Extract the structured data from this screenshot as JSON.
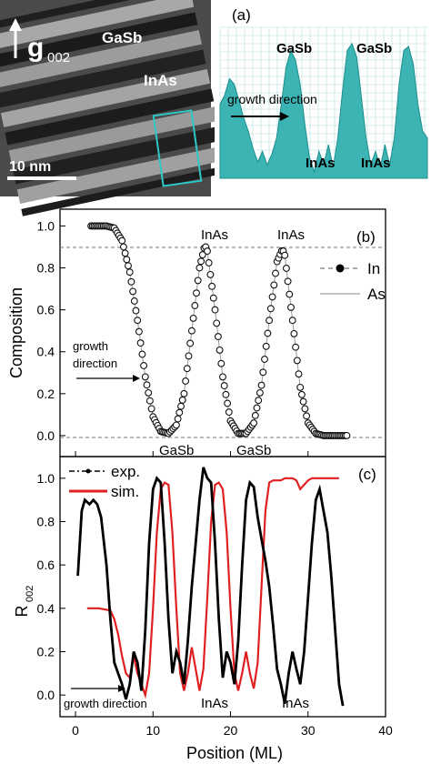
{
  "panel_a": {
    "tem": {
      "g_label": "g",
      "g_subscript": "002",
      "layer_top": "GaSb",
      "layer_mid": "InAs",
      "scale_bar": "10 nm"
    },
    "profile": {
      "panel_label": "(a)",
      "peak_labels": [
        "GaSb",
        "GaSb"
      ],
      "valley_labels": [
        "InAs",
        "InAs"
      ],
      "growth_label": "growth direction",
      "fill_color": "#3cb4b4",
      "grid_color": "#b5dede"
    }
  },
  "panel_b": {
    "panel_label": "(b)",
    "growth_label_1": "growth",
    "growth_label_2": "direction",
    "peak_labels": [
      "InAs",
      "InAs"
    ],
    "valley_labels": [
      "GaSb",
      "GaSb"
    ]
  },
  "panel_c": {
    "panel_label": "(c)",
    "growth_label": "growth direction",
    "valley_labels": [
      "InAs",
      "InAs"
    ]
  },
  "chart_data": [
    {
      "type": "scatter",
      "panel": "(b)",
      "xlabel": "",
      "ylabel": "Composition",
      "ylim": [
        -0.1,
        1.08
      ],
      "yticks": [
        "0.0",
        "0.2",
        "0.4",
        "0.6",
        "0.8",
        "1.0"
      ],
      "reference_lines": [
        1.0,
        0.0
      ],
      "legend": [
        "In",
        "As"
      ],
      "legend_position": "top-right",
      "series": [
        {
          "name": "In",
          "x": [
            2.0,
            3.0,
            4.0,
            5.0,
            6.0,
            7.0,
            8.0,
            9.0,
            10.0,
            11.0,
            12.0,
            13.0,
            14.0,
            15.0,
            16.0,
            16.7,
            17.0,
            18.0,
            19.0,
            20.0,
            21.0,
            22.0,
            23.0,
            24.0,
            25.0,
            26.0,
            26.7,
            27.0,
            28.0,
            29.0,
            30.0,
            31.0,
            32.0,
            33.0,
            34.0,
            35.0
          ],
          "y": [
            1.0,
            1.0,
            1.0,
            0.99,
            0.93,
            0.78,
            0.55,
            0.28,
            0.09,
            0.02,
            0.01,
            0.05,
            0.2,
            0.5,
            0.8,
            0.91,
            0.88,
            0.6,
            0.28,
            0.07,
            0.01,
            0.01,
            0.06,
            0.24,
            0.55,
            0.83,
            0.89,
            0.86,
            0.55,
            0.23,
            0.06,
            0.01,
            0.0,
            0.0,
            0.0,
            0.0
          ]
        },
        {
          "name": "As",
          "x": [
            2.0,
            3.0,
            4.0,
            5.0,
            6.0,
            7.0,
            8.0,
            9.0,
            10.0,
            11.0,
            12.0,
            13.0,
            14.0,
            15.0,
            16.0,
            16.7,
            17.0,
            18.0,
            19.0,
            20.0,
            21.0,
            22.0,
            23.0,
            24.0,
            25.0,
            26.0,
            26.7,
            27.0,
            28.0,
            29.0,
            30.0,
            31.0,
            32.0,
            33.0,
            34.0,
            35.0
          ],
          "y": [
            1.0,
            1.0,
            1.0,
            0.99,
            0.93,
            0.78,
            0.55,
            0.28,
            0.09,
            0.02,
            0.01,
            0.05,
            0.2,
            0.5,
            0.8,
            0.91,
            0.88,
            0.6,
            0.28,
            0.07,
            0.01,
            0.01,
            0.06,
            0.24,
            0.55,
            0.83,
            0.89,
            0.86,
            0.55,
            0.23,
            0.06,
            0.01,
            0.0,
            0.0,
            0.0,
            0.0
          ]
        }
      ]
    },
    {
      "type": "line",
      "panel": "(c)",
      "xlabel": "Position (ML)",
      "ylabel": "R",
      "ylabel_subscript": "002",
      "xlim": [
        -2,
        40
      ],
      "ylim": [
        -0.1,
        1.1
      ],
      "xticks": [
        "0",
        "10",
        "20",
        "30",
        "40"
      ],
      "yticks": [
        "0.0",
        "0.2",
        "0.4",
        "0.6",
        "0.8",
        "1.0"
      ],
      "legend": [
        "exp.",
        "sim."
      ],
      "legend_position": "top-left",
      "series": [
        {
          "name": "exp.",
          "color": "#000000",
          "x": [
            0.3,
            0.8,
            1.2,
            1.8,
            2.3,
            2.8,
            3.3,
            4.0,
            4.5,
            5.0,
            5.5,
            6.0,
            6.5,
            7.0,
            7.5,
            8.0,
            8.5,
            9.0,
            9.5,
            10.0,
            10.5,
            11.0,
            11.5,
            12.0,
            12.5,
            13.0,
            13.5,
            14.0,
            14.5,
            15.0,
            15.5,
            16.0,
            16.5,
            17.0,
            17.5,
            18.0,
            18.5,
            19.0,
            19.5,
            20.0,
            20.5,
            21.0,
            21.5,
            22.0,
            22.5,
            23.0,
            23.5,
            24.0,
            24.5,
            25.0,
            25.5,
            26.0,
            26.5,
            27.0,
            27.5,
            28.0,
            28.5,
            29.0,
            29.5,
            30.0,
            30.5,
            31.0,
            31.5,
            32.0,
            32.5,
            33.0,
            33.5,
            34.0,
            34.5
          ],
          "y": [
            0.55,
            0.85,
            0.9,
            0.88,
            0.9,
            0.88,
            0.82,
            0.6,
            0.35,
            0.15,
            0.1,
            0.05,
            -0.02,
            0.05,
            0.2,
            0.15,
            0.02,
            0.3,
            0.7,
            0.95,
            1.0,
            0.98,
            0.7,
            0.35,
            0.1,
            0.2,
            0.15,
            0.05,
            0.25,
            0.5,
            0.7,
            0.9,
            1.05,
            1.0,
            0.98,
            0.7,
            0.35,
            0.08,
            0.2,
            0.15,
            0.05,
            0.25,
            0.6,
            0.9,
            0.98,
            0.96,
            0.82,
            0.72,
            0.62,
            0.5,
            0.32,
            0.12,
            0.05,
            -0.04,
            0.1,
            0.2,
            0.12,
            0.05,
            0.2,
            0.45,
            0.7,
            0.9,
            0.95,
            0.85,
            0.75,
            0.55,
            0.3,
            0.05,
            -0.05
          ]
        },
        {
          "name": "sim.",
          "color": "#e02020",
          "x": [
            1.5,
            3.0,
            4.5,
            5.0,
            5.5,
            6.0,
            6.5,
            7.0,
            7.5,
            8.0,
            8.5,
            9.0,
            9.5,
            10.0,
            10.5,
            11.0,
            11.5,
            12.0,
            12.5,
            13.0,
            13.5,
            14.0,
            14.5,
            15.0,
            15.5,
            16.0,
            16.5,
            17.0,
            17.5,
            18.0,
            18.5,
            19.0,
            19.5,
            20.0,
            20.5,
            21.0,
            21.5,
            22.0,
            22.5,
            23.0,
            23.5,
            24.0,
            24.5,
            25.0,
            25.5,
            26.0,
            26.5,
            27.0,
            27.5,
            28.0,
            28.5,
            29.0,
            29.5,
            30.0,
            30.5,
            31.0,
            32.0,
            33.0,
            34.0
          ],
          "y": [
            0.4,
            0.4,
            0.39,
            0.35,
            0.28,
            0.18,
            0.1,
            0.08,
            0.18,
            0.1,
            0.05,
            0.0,
            0.1,
            0.4,
            0.75,
            0.95,
            0.98,
            0.97,
            0.75,
            0.4,
            0.1,
            0.02,
            0.1,
            0.22,
            0.12,
            0.02,
            0.12,
            0.45,
            0.8,
            0.97,
            0.98,
            0.95,
            0.75,
            0.4,
            0.1,
            0.02,
            0.1,
            0.2,
            0.1,
            0.03,
            0.15,
            0.5,
            0.85,
            0.98,
            0.99,
            0.99,
            0.99,
            1.0,
            1.0,
            1.0,
            0.99,
            0.95,
            0.97,
            0.99,
            1.0,
            1.0,
            1.0,
            1.0,
            1.0
          ]
        }
      ]
    }
  ]
}
